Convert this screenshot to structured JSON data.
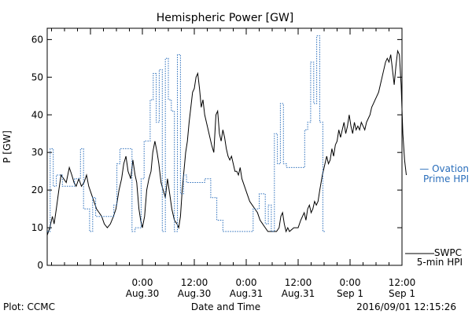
{
  "chart_data": {
    "type": "line",
    "title": "Hemispheric Power [GW]",
    "ylabel": "P [GW]",
    "xlabel": "Date and Time",
    "ylim": [
      0,
      63
    ],
    "x_range_hours": [
      -22,
      60
    ],
    "x_ticks": [
      {
        "hour": 0,
        "time": "0:00",
        "date": "Aug.30"
      },
      {
        "hour": 12,
        "time": "12:00",
        "date": "Aug.30"
      },
      {
        "hour": 24,
        "time": "0:00",
        "date": "Aug.31"
      },
      {
        "hour": 36,
        "time": "12:00",
        "date": "Aug.31"
      },
      {
        "hour": 48,
        "time": "0:00",
        "date": "Sep 1"
      },
      {
        "hour": 60,
        "time": "12:00",
        "date": "Sep 1"
      }
    ],
    "y_ticks": [
      0,
      10,
      20,
      30,
      40,
      50,
      60
    ],
    "series": [
      {
        "name": "SWPC 5-min HPI",
        "legend_lines": [
          "SWPC",
          "5-min HPI"
        ],
        "color": "#000000",
        "style": "solid",
        "points": [
          [
            -22,
            8
          ],
          [
            -21.4,
            10
          ],
          [
            -20.8,
            13
          ],
          [
            -20.4,
            11
          ],
          [
            -19.9,
            15
          ],
          [
            -19.3,
            20
          ],
          [
            -18.8,
            24
          ],
          [
            -18.2,
            23
          ],
          [
            -17.6,
            22
          ],
          [
            -16.9,
            26
          ],
          [
            -16.3,
            24
          ],
          [
            -15.8,
            22
          ],
          [
            -15.3,
            21
          ],
          [
            -14.7,
            23
          ],
          [
            -14.1,
            21
          ],
          [
            -13.5,
            22
          ],
          [
            -12.9,
            24
          ],
          [
            -12.4,
            21
          ],
          [
            -11.8,
            19
          ],
          [
            -11.2,
            17
          ],
          [
            -10.6,
            15
          ],
          [
            -10,
            14
          ],
          [
            -9.4,
            13
          ],
          [
            -8.8,
            11
          ],
          [
            -8.1,
            10
          ],
          [
            -7.4,
            11
          ],
          [
            -6.7,
            13
          ],
          [
            -6.1,
            15
          ],
          [
            -5.4,
            20
          ],
          [
            -4.8,
            23
          ],
          [
            -4.3,
            27
          ],
          [
            -3.8,
            29
          ],
          [
            -3.3,
            25
          ],
          [
            -2.7,
            23
          ],
          [
            -2.2,
            28
          ],
          [
            -1.7,
            24
          ],
          [
            -1.3,
            22
          ],
          [
            -0.8,
            15
          ],
          [
            -0.4,
            12
          ],
          [
            0,
            10
          ],
          [
            0.5,
            13
          ],
          [
            1,
            20
          ],
          [
            1.5,
            23
          ],
          [
            2,
            25
          ],
          [
            2.4,
            30
          ],
          [
            2.9,
            33
          ],
          [
            3.4,
            30
          ],
          [
            3.8,
            27
          ],
          [
            4.3,
            22
          ],
          [
            4.8,
            20
          ],
          [
            5.3,
            18
          ],
          [
            5.8,
            23
          ],
          [
            6.3,
            19
          ],
          [
            6.8,
            15
          ],
          [
            7.4,
            12
          ],
          [
            8,
            11
          ],
          [
            8.4,
            10
          ],
          [
            8.8,
            13
          ],
          [
            9.2,
            20
          ],
          [
            9.6,
            25
          ],
          [
            10,
            30
          ],
          [
            10.4,
            33
          ],
          [
            10.8,
            38
          ],
          [
            11.2,
            42
          ],
          [
            11.6,
            46
          ],
          [
            12,
            47
          ],
          [
            12.4,
            50
          ],
          [
            12.8,
            51
          ],
          [
            13.2,
            47
          ],
          [
            13.6,
            42
          ],
          [
            14,
            44
          ],
          [
            14.4,
            40
          ],
          [
            14.8,
            38
          ],
          [
            15.2,
            36
          ],
          [
            15.6,
            34
          ],
          [
            16,
            32
          ],
          [
            16.5,
            30
          ],
          [
            17,
            40
          ],
          [
            17.4,
            41
          ],
          [
            17.8,
            35
          ],
          [
            18.2,
            33
          ],
          [
            18.6,
            36
          ],
          [
            19,
            34
          ],
          [
            19.4,
            31
          ],
          [
            19.8,
            29
          ],
          [
            20.2,
            28
          ],
          [
            20.6,
            29
          ],
          [
            21,
            27
          ],
          [
            21.4,
            25
          ],
          [
            21.8,
            25
          ],
          [
            22.2,
            24
          ],
          [
            22.6,
            26
          ],
          [
            23,
            23
          ],
          [
            23.6,
            21
          ],
          [
            24.2,
            19
          ],
          [
            24.8,
            17
          ],
          [
            25.4,
            16
          ],
          [
            26,
            15
          ],
          [
            26.6,
            14
          ],
          [
            27.2,
            12
          ],
          [
            27.8,
            11
          ],
          [
            28.4,
            10
          ],
          [
            29,
            9
          ],
          [
            30,
            9
          ],
          [
            31,
            9
          ],
          [
            31.6,
            10
          ],
          [
            32,
            13
          ],
          [
            32.4,
            14
          ],
          [
            32.8,
            11
          ],
          [
            33.2,
            9
          ],
          [
            33.6,
            10
          ],
          [
            34,
            9
          ],
          [
            35,
            10
          ],
          [
            36,
            10
          ],
          [
            36.6,
            12
          ],
          [
            37,
            13
          ],
          [
            37.4,
            14
          ],
          [
            37.8,
            12
          ],
          [
            38.2,
            15
          ],
          [
            38.6,
            16
          ],
          [
            39,
            14
          ],
          [
            39.4,
            15
          ],
          [
            39.8,
            17
          ],
          [
            40.2,
            16
          ],
          [
            40.6,
            17
          ],
          [
            41,
            20
          ],
          [
            41.6,
            24
          ],
          [
            42.2,
            27
          ],
          [
            42.6,
            29
          ],
          [
            43,
            27
          ],
          [
            43.4,
            28
          ],
          [
            43.8,
            31
          ],
          [
            44.2,
            29
          ],
          [
            44.6,
            32
          ],
          [
            45,
            33
          ],
          [
            45.4,
            36
          ],
          [
            45.8,
            34
          ],
          [
            46.2,
            36
          ],
          [
            46.6,
            38
          ],
          [
            47,
            35
          ],
          [
            47.4,
            37
          ],
          [
            47.8,
            40
          ],
          [
            48.2,
            37
          ],
          [
            48.6,
            35
          ],
          [
            49,
            38
          ],
          [
            49.4,
            36
          ],
          [
            49.8,
            37
          ],
          [
            50.2,
            36
          ],
          [
            50.6,
            38
          ],
          [
            51,
            37
          ],
          [
            51.4,
            36
          ],
          [
            51.8,
            38
          ],
          [
            52.2,
            39
          ],
          [
            52.6,
            40
          ],
          [
            53,
            42
          ],
          [
            53.4,
            43
          ],
          [
            53.8,
            44
          ],
          [
            54.2,
            45
          ],
          [
            54.6,
            46
          ],
          [
            55,
            48
          ],
          [
            55.4,
            50
          ],
          [
            55.8,
            52
          ],
          [
            56.2,
            54
          ],
          [
            56.6,
            55
          ],
          [
            57,
            54
          ],
          [
            57.4,
            56
          ],
          [
            57.8,
            52
          ],
          [
            58.2,
            48
          ],
          [
            58.6,
            53
          ],
          [
            59,
            57
          ],
          [
            59.4,
            56
          ],
          [
            59.8,
            48
          ],
          [
            60.2,
            35
          ],
          [
            60.6,
            28
          ],
          [
            61,
            24
          ]
        ]
      },
      {
        "name": "Ovation Prime HPI",
        "legend_lines": [
          "— Ovation",
          "Prime HPI"
        ],
        "color": "#2a6ebb",
        "style": "dotted",
        "points": [
          [
            -22,
            9
          ],
          [
            -21.3,
            9
          ],
          [
            -21.3,
            31
          ],
          [
            -20.6,
            31
          ],
          [
            -20.6,
            21
          ],
          [
            -19.9,
            21
          ],
          [
            -19.9,
            24
          ],
          [
            -18.5,
            24
          ],
          [
            -18.5,
            21
          ],
          [
            -15.7,
            21
          ],
          [
            -15.7,
            23
          ],
          [
            -14.3,
            23
          ],
          [
            -14.3,
            31
          ],
          [
            -13.6,
            31
          ],
          [
            -13.6,
            15
          ],
          [
            -12.2,
            15
          ],
          [
            -12.2,
            9
          ],
          [
            -11.5,
            9
          ],
          [
            -11.5,
            18
          ],
          [
            -10.8,
            18
          ],
          [
            -10.8,
            13
          ],
          [
            -6.6,
            13
          ],
          [
            -6.6,
            16
          ],
          [
            -5.9,
            16
          ],
          [
            -5.9,
            27
          ],
          [
            -5.2,
            27
          ],
          [
            -5.2,
            31
          ],
          [
            -2.4,
            31
          ],
          [
            -2.4,
            9
          ],
          [
            -1.7,
            9
          ],
          [
            -1.7,
            10
          ],
          [
            -0.3,
            10
          ],
          [
            -0.3,
            23
          ],
          [
            0.4,
            23
          ],
          [
            0.4,
            33
          ],
          [
            1.8,
            33
          ],
          [
            1.8,
            44
          ],
          [
            2.5,
            44
          ],
          [
            2.5,
            51
          ],
          [
            3.2,
            51
          ],
          [
            3.2,
            38
          ],
          [
            3.9,
            38
          ],
          [
            3.9,
            52
          ],
          [
            4.6,
            52
          ],
          [
            4.6,
            9
          ],
          [
            5.3,
            9
          ],
          [
            5.3,
            55
          ],
          [
            6,
            55
          ],
          [
            6,
            44
          ],
          [
            6.7,
            44
          ],
          [
            6.7,
            41
          ],
          [
            7.4,
            41
          ],
          [
            7.4,
            9
          ],
          [
            8.1,
            9
          ],
          [
            8.1,
            56
          ],
          [
            8.8,
            56
          ],
          [
            8.8,
            19
          ],
          [
            9.5,
            19
          ],
          [
            9.5,
            24
          ],
          [
            10.2,
            24
          ],
          [
            10.2,
            22
          ],
          [
            14.4,
            22
          ],
          [
            14.4,
            23
          ],
          [
            15.8,
            23
          ],
          [
            15.8,
            18
          ],
          [
            17.2,
            18
          ],
          [
            17.2,
            12
          ],
          [
            18.6,
            12
          ],
          [
            18.6,
            9
          ],
          [
            25.6,
            9
          ],
          [
            25.6,
            15
          ],
          [
            27,
            15
          ],
          [
            27,
            19
          ],
          [
            28.4,
            19
          ],
          [
            28.4,
            11
          ],
          [
            29.1,
            11
          ],
          [
            29.1,
            16
          ],
          [
            29.8,
            16
          ],
          [
            29.8,
            9
          ],
          [
            30.5,
            9
          ],
          [
            30.5,
            35
          ],
          [
            31.2,
            35
          ],
          [
            31.2,
            27
          ],
          [
            31.9,
            27
          ],
          [
            31.9,
            43
          ],
          [
            32.6,
            43
          ],
          [
            32.6,
            27
          ],
          [
            33.3,
            27
          ],
          [
            33.3,
            26
          ],
          [
            37.5,
            26
          ],
          [
            37.5,
            36
          ],
          [
            38.2,
            36
          ],
          [
            38.2,
            38
          ],
          [
            38.9,
            38
          ],
          [
            38.9,
            54
          ],
          [
            39.6,
            54
          ],
          [
            39.6,
            43
          ],
          [
            40.3,
            43
          ],
          [
            40.3,
            61
          ],
          [
            41,
            61
          ],
          [
            41,
            38
          ],
          [
            41.7,
            38
          ],
          [
            41.7,
            9
          ],
          [
            42.4,
            9
          ],
          [
            42.4,
            9
          ]
        ]
      }
    ]
  },
  "footer": {
    "plot_label": "Plot: CCMC",
    "timestamp": "2016/09/01 12:15:26"
  }
}
